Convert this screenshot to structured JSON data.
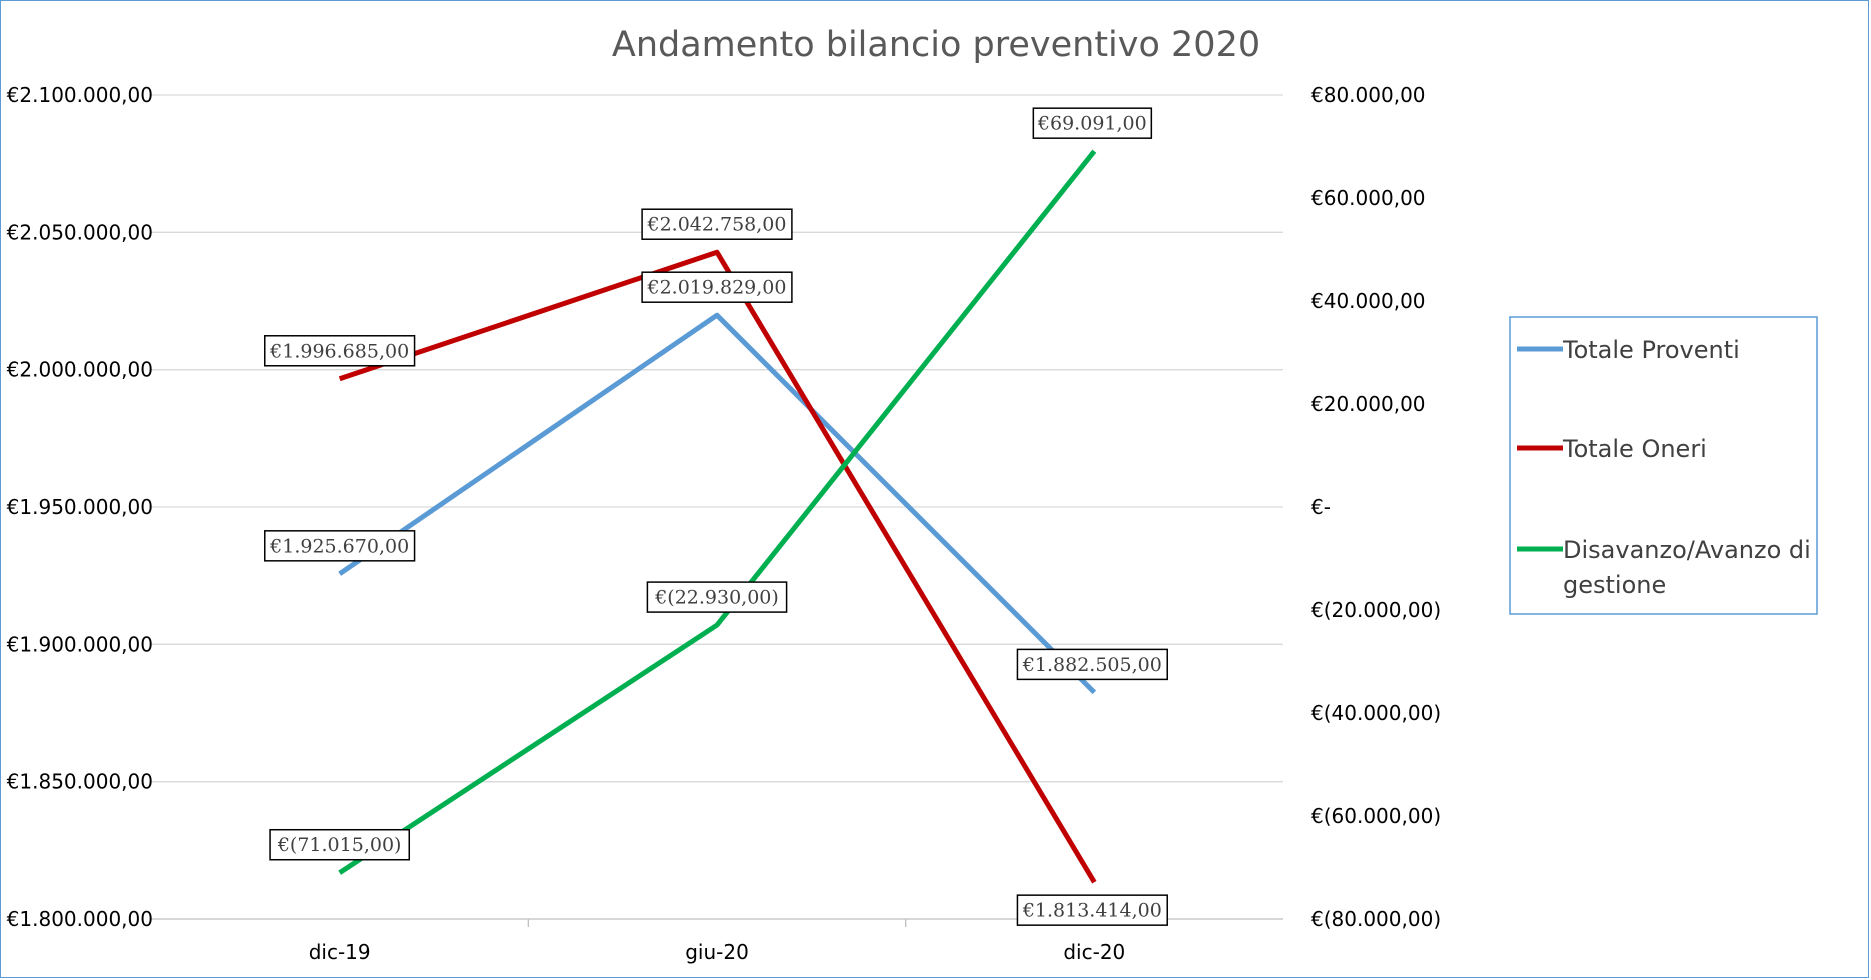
{
  "chart_data": {
    "type": "line",
    "title": "Andamento bilancio preventivo 2020",
    "categories": [
      "dic-19",
      "giu-20",
      "dic-20"
    ],
    "axes": {
      "primary_y": {
        "min": 1800000,
        "max": 2100000,
        "step": 50000,
        "tick_labels": [
          "€1.800.000,00",
          "€1.850.000,00",
          "€1.900.000,00",
          "€1.950.000,00",
          "€2.000.000,00",
          "€2.050.000,00",
          "€2.100.000,00"
        ]
      },
      "secondary_y": {
        "min": -80000,
        "max": 80000,
        "step": 20000,
        "tick_labels": [
          "€(80.000,00)",
          "€(60.000,00)",
          "€(40.000,00)",
          "€(20.000,00)",
          "€-",
          "€20.000,00",
          "€40.000,00",
          "€60.000,00",
          "€80.000,00"
        ]
      }
    },
    "grid": "horizontal",
    "legend_position": "right",
    "series": [
      {
        "name": "Totale Proventi",
        "axis": "primary",
        "color": "#5b9bd5",
        "values": [
          1925670,
          2019829,
          1882505
        ],
        "labels": [
          "€1.925.670,00",
          "€2.019.829,00",
          "€1.882.505,00"
        ]
      },
      {
        "name": "Totale Oneri",
        "axis": "primary",
        "color": "#c00000",
        "values": [
          1996685,
          2042758,
          1813414
        ],
        "labels": [
          "€1.996.685,00",
          "€2.042.758,00",
          "€1.813.414,00"
        ]
      },
      {
        "name": "Disavanzo/Avanzo di gestione",
        "legend_lines": [
          "Disavanzo/Avanzo di",
          "gestione"
        ],
        "axis": "secondary",
        "color": "#00b050",
        "values": [
          -71015,
          -22930,
          69091
        ],
        "labels": [
          "€(71.015,00)",
          "€(22.930,00)",
          "€69.091,00"
        ]
      }
    ]
  }
}
